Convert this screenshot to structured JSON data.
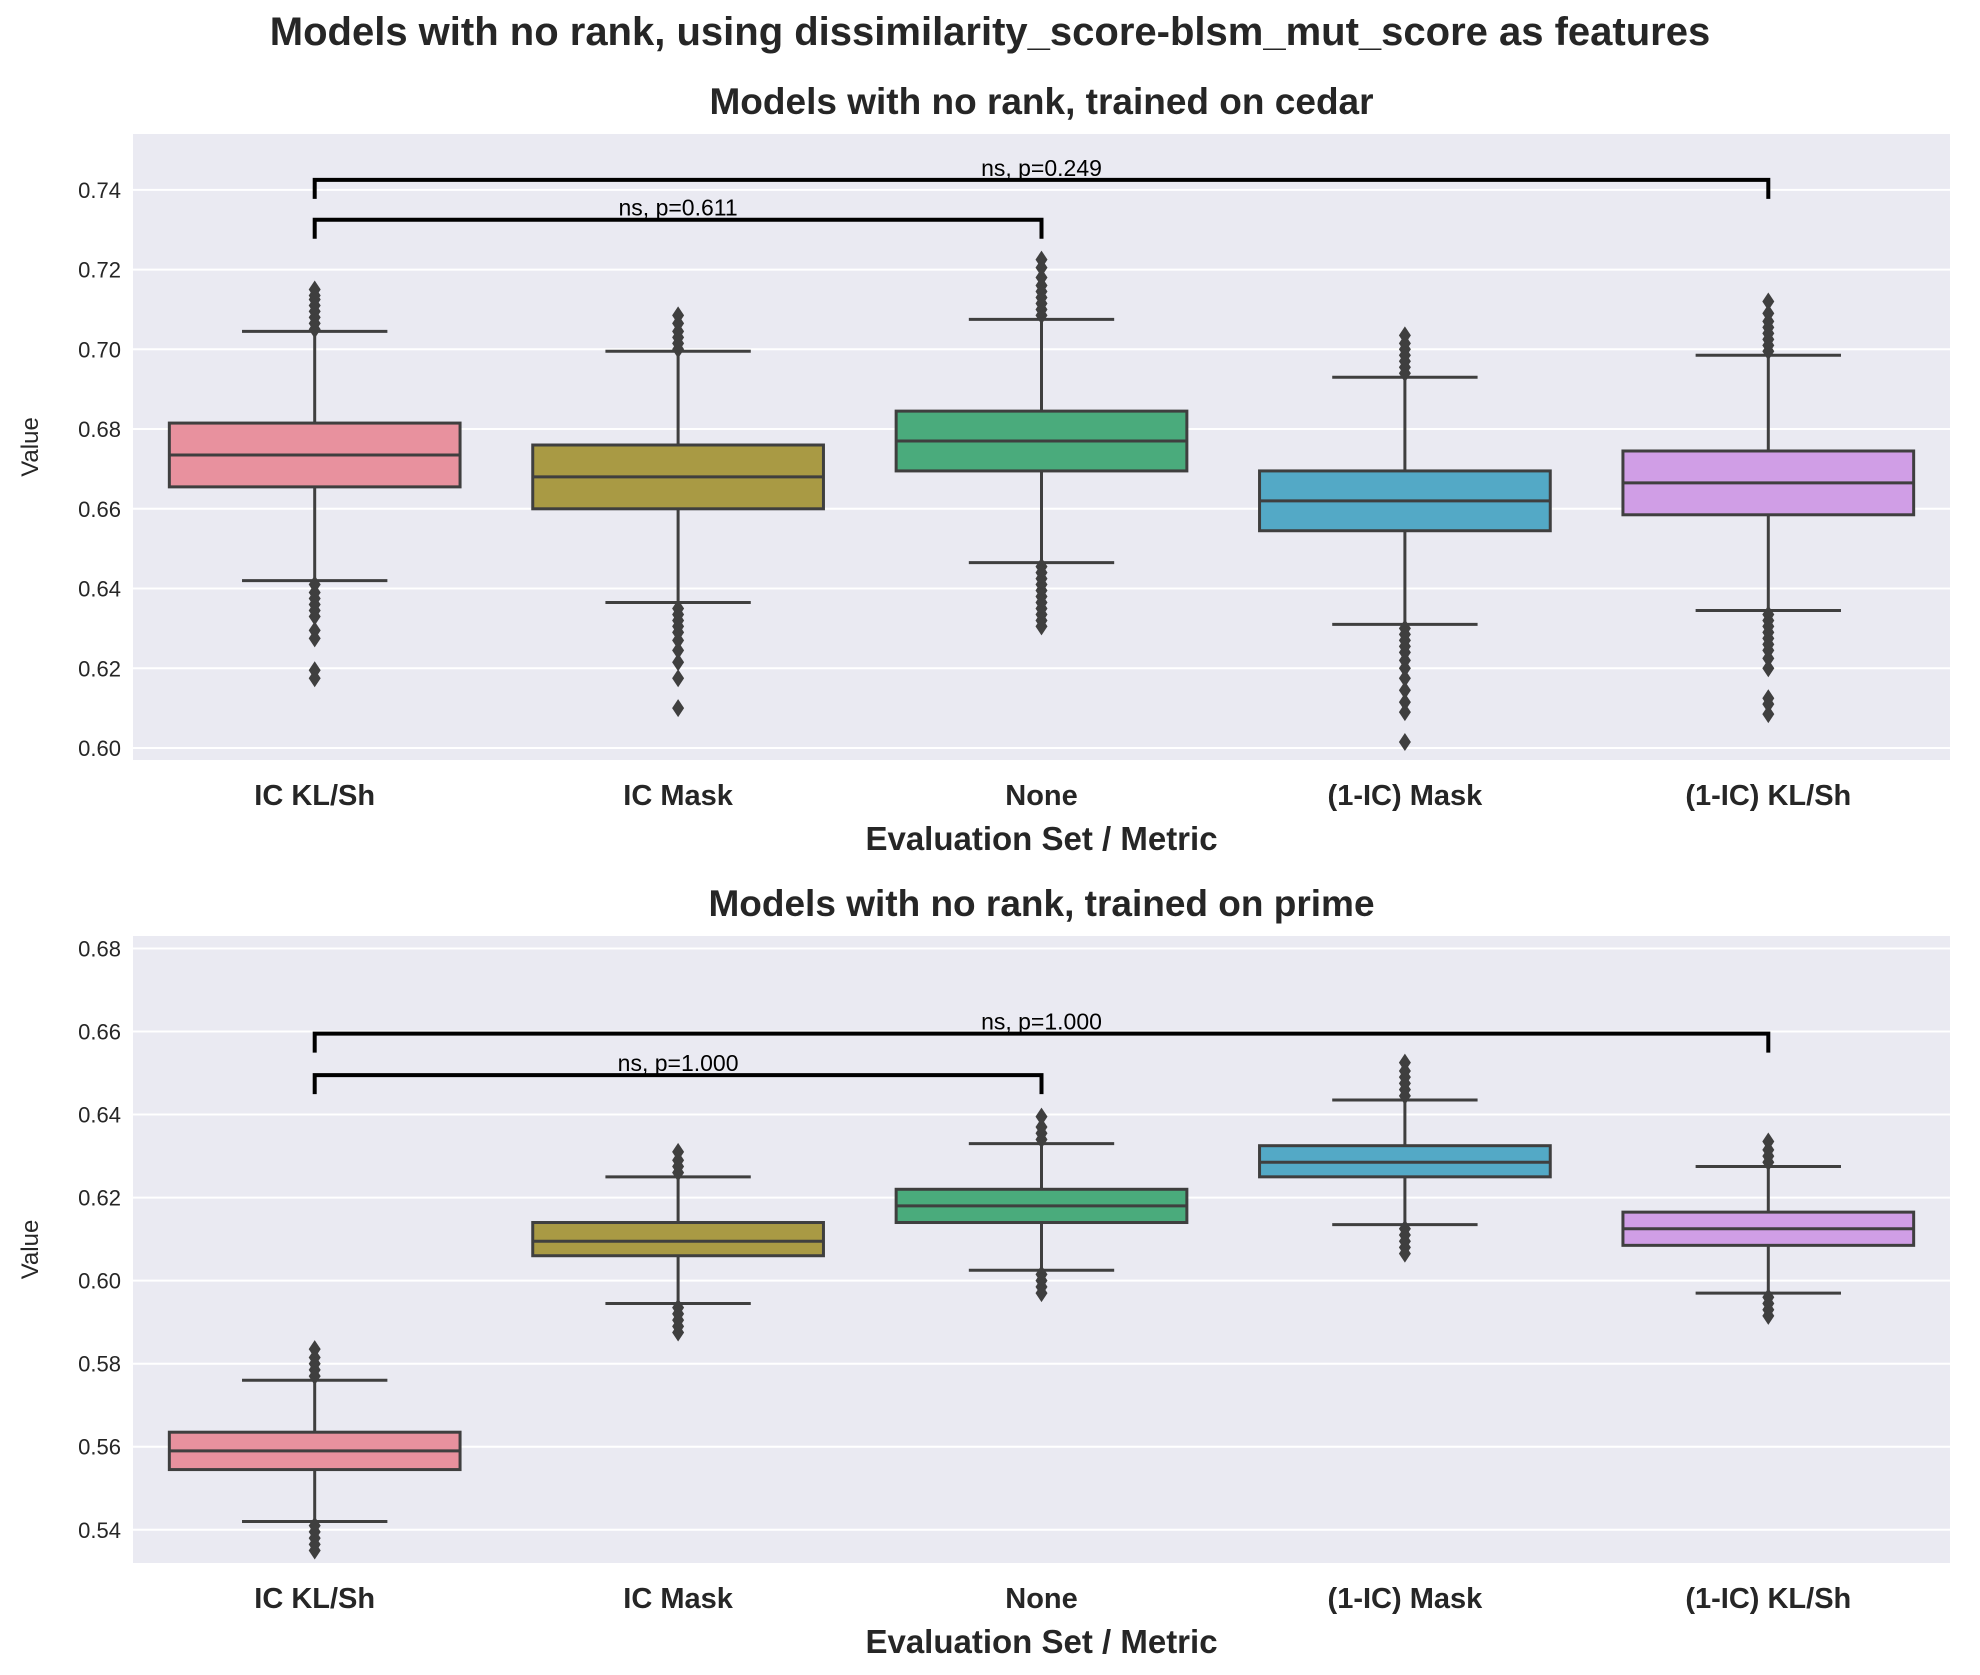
{
  "figure": {
    "suptitle": "Models with no rank, using dissimilarity_score-blsm_mut_score as features",
    "colors": [
      "#e8919e",
      "#a99a44",
      "#4aab7c",
      "#53a9c6",
      "#d09ee6"
    ],
    "background": "#eaeaf2",
    "box_edge_color": "#3f3f3f"
  },
  "chart_data": [
    {
      "type": "box",
      "title": "Models with no rank, trained on cedar",
      "xlabel": "Evaluation Set / Metric",
      "ylabel": "Value",
      "categories": [
        "IC KL/Sh",
        "IC Mask",
        "None",
        "(1-IC) Mask",
        "(1-IC) KL/Sh"
      ],
      "ylim": [
        0.597,
        0.754
      ],
      "yticks": [
        "0.60",
        "0.62",
        "0.64",
        "0.66",
        "0.68",
        "0.70",
        "0.72",
        "0.74"
      ],
      "ytick_values": [
        0.6,
        0.62,
        0.64,
        0.66,
        0.68,
        0.7,
        0.72,
        0.74
      ],
      "grid": true,
      "boxes": [
        {
          "whislo": 0.642,
          "q1": 0.6655,
          "median": 0.6735,
          "q3": 0.6815,
          "whishi": 0.7045,
          "fliers_low": [
            0.641,
            0.639,
            0.6375,
            0.636,
            0.6345,
            0.633,
            0.6295,
            0.6275,
            0.6195,
            0.6175
          ],
          "fliers_high": [
            0.705,
            0.7065,
            0.708,
            0.7095,
            0.711,
            0.7125,
            0.7135,
            0.715
          ]
        },
        {
          "whislo": 0.6365,
          "q1": 0.66,
          "median": 0.668,
          "q3": 0.676,
          "whishi": 0.6995,
          "fliers_low": [
            0.635,
            0.6335,
            0.632,
            0.6305,
            0.629,
            0.627,
            0.6245,
            0.6215,
            0.6175,
            0.61
          ],
          "fliers_high": [
            0.7,
            0.7015,
            0.703,
            0.7045,
            0.7065,
            0.7085
          ]
        },
        {
          "whislo": 0.6465,
          "q1": 0.6695,
          "median": 0.677,
          "q3": 0.6845,
          "whishi": 0.7075,
          "fliers_low": [
            0.6455,
            0.644,
            0.6425,
            0.641,
            0.6395,
            0.638,
            0.6365,
            0.635,
            0.6335,
            0.632,
            0.6305
          ],
          "fliers_high": [
            0.7085,
            0.71,
            0.7115,
            0.713,
            0.7145,
            0.716,
            0.718,
            0.7205,
            0.7225
          ]
        },
        {
          "whislo": 0.631,
          "q1": 0.6545,
          "median": 0.662,
          "q3": 0.6695,
          "whishi": 0.693,
          "fliers_low": [
            0.63,
            0.6285,
            0.627,
            0.6255,
            0.624,
            0.622,
            0.62,
            0.6175,
            0.6145,
            0.6115,
            0.609,
            0.6015
          ],
          "fliers_high": [
            0.694,
            0.6955,
            0.697,
            0.6985,
            0.7,
            0.7015,
            0.7035
          ]
        },
        {
          "whislo": 0.6345,
          "q1": 0.6585,
          "median": 0.6665,
          "q3": 0.6745,
          "whishi": 0.6985,
          "fliers_low": [
            0.6335,
            0.632,
            0.6305,
            0.629,
            0.6275,
            0.626,
            0.6245,
            0.6225,
            0.62,
            0.6125,
            0.611,
            0.6085
          ],
          "fliers_high": [
            0.6995,
            0.701,
            0.7025,
            0.704,
            0.7055,
            0.707,
            0.709,
            0.712
          ]
        }
      ],
      "annotations": [
        {
          "from": "IC KL/Sh",
          "to": "None",
          "y": 0.7325,
          "text": "ns, p=0.611"
        },
        {
          "from": "IC KL/Sh",
          "to": "(1-IC) KL/Sh",
          "y": 0.7425,
          "text": "ns, p=0.249"
        }
      ]
    },
    {
      "type": "box",
      "title": "Models with no rank, trained on prime",
      "xlabel": "Evaluation Set / Metric",
      "ylabel": "Value",
      "categories": [
        "IC KL/Sh",
        "IC Mask",
        "None",
        "(1-IC) Mask",
        "(1-IC) KL/Sh"
      ],
      "ylim": [
        0.532,
        0.683
      ],
      "yticks": [
        "0.54",
        "0.56",
        "0.58",
        "0.60",
        "0.62",
        "0.64",
        "0.66",
        "0.68"
      ],
      "ytick_values": [
        0.54,
        0.56,
        0.58,
        0.6,
        0.62,
        0.64,
        0.66,
        0.68
      ],
      "grid": true,
      "boxes": [
        {
          "whislo": 0.542,
          "q1": 0.5545,
          "median": 0.559,
          "q3": 0.5635,
          "whishi": 0.576,
          "fliers_low": [
            0.541,
            0.5395,
            0.538,
            0.5365,
            0.535
          ],
          "fliers_high": [
            0.577,
            0.5785,
            0.58,
            0.5815,
            0.5835
          ]
        },
        {
          "whislo": 0.5945,
          "q1": 0.606,
          "median": 0.6095,
          "q3": 0.614,
          "whishi": 0.625,
          "fliers_low": [
            0.5935,
            0.592,
            0.5905,
            0.589,
            0.5875
          ],
          "fliers_high": [
            0.626,
            0.6275,
            0.629,
            0.631
          ]
        },
        {
          "whislo": 0.6025,
          "q1": 0.614,
          "median": 0.618,
          "q3": 0.622,
          "whishi": 0.633,
          "fliers_low": [
            0.6015,
            0.6,
            0.5985,
            0.597
          ],
          "fliers_high": [
            0.634,
            0.6355,
            0.637,
            0.6395
          ]
        },
        {
          "whislo": 0.6135,
          "q1": 0.625,
          "median": 0.6285,
          "q3": 0.6325,
          "whishi": 0.6435,
          "fliers_low": [
            0.6125,
            0.611,
            0.6095,
            0.608,
            0.6065
          ],
          "fliers_high": [
            0.6445,
            0.646,
            0.6475,
            0.649,
            0.6505,
            0.6525
          ]
        },
        {
          "whislo": 0.597,
          "q1": 0.6085,
          "median": 0.6125,
          "q3": 0.6165,
          "whishi": 0.6275,
          "fliers_low": [
            0.596,
            0.5945,
            0.593,
            0.5915
          ],
          "fliers_high": [
            0.6285,
            0.63,
            0.6315,
            0.6335
          ]
        }
      ],
      "annotations": [
        {
          "from": "IC KL/Sh",
          "to": "None",
          "y": 0.6495,
          "text": "ns, p=1.000"
        },
        {
          "from": "IC KL/Sh",
          "to": "(1-IC) KL/Sh",
          "y": 0.6595,
          "text": "ns, p=1.000"
        }
      ]
    }
  ]
}
